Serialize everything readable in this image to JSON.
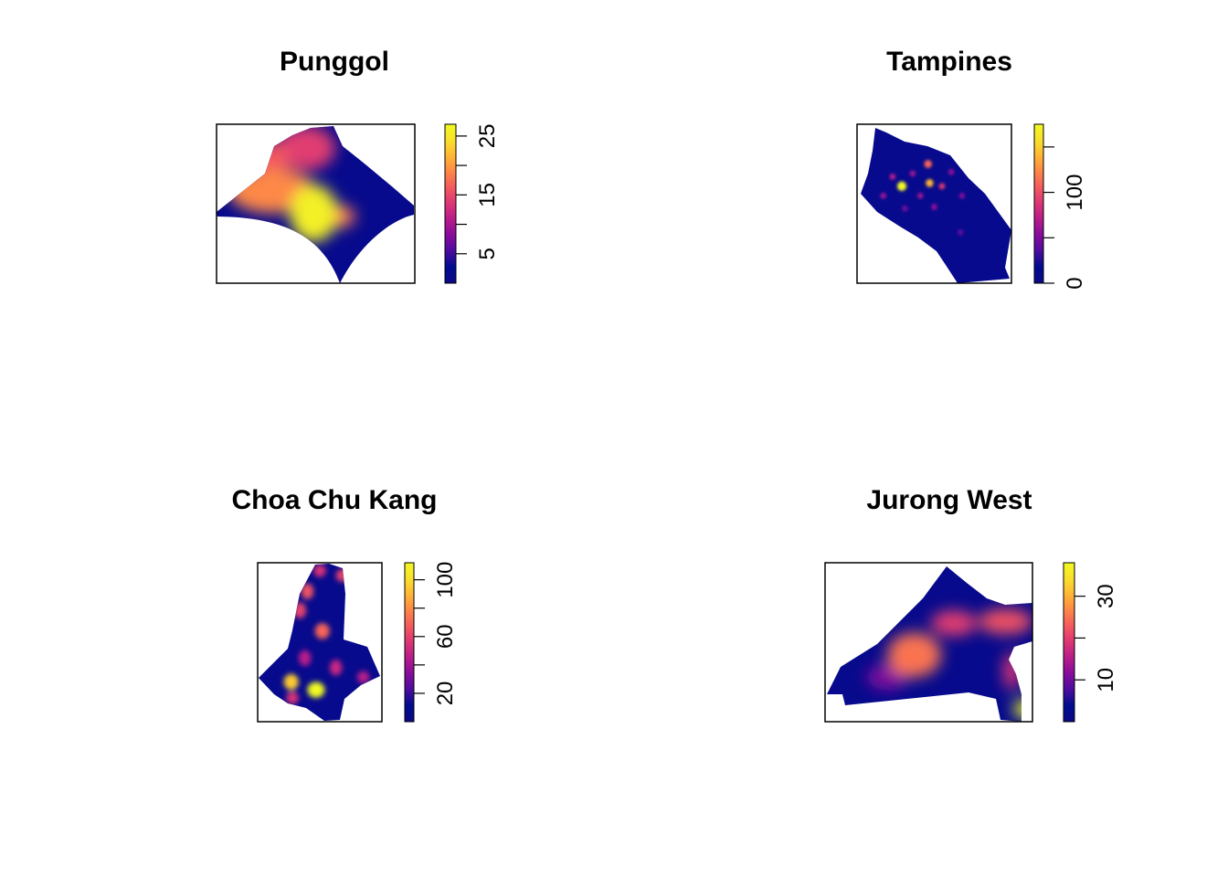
{
  "colors": {
    "palette": [
      "#0D0887",
      "#000B90",
      "#4A0C9F",
      "#860B9C",
      "#B71B8B",
      "#DC3575",
      "#F3595E",
      "#FD8647",
      "#FFB535",
      "#F9E02B",
      "#F0F921"
    ],
    "frame": "#000000",
    "background": "#FFFFFF"
  },
  "chart_data": [
    {
      "type": "heatmap",
      "title": "Punggol",
      "zlim": [
        0,
        27
      ],
      "ticks": [
        5,
        10,
        15,
        20,
        25
      ],
      "tick_labels": [
        "5",
        "",
        "15",
        "",
        "25"
      ],
      "hotspots": [
        {
          "x": 0.49,
          "y": 0.56,
          "rx": 0.12,
          "ry": 0.18,
          "value": 26
        },
        {
          "x": 0.28,
          "y": 0.42,
          "rx": 0.22,
          "ry": 0.14,
          "value": 19
        },
        {
          "x": 0.62,
          "y": 0.58,
          "rx": 0.08,
          "ry": 0.07,
          "value": 18
        },
        {
          "x": 0.28,
          "y": 0.22,
          "rx": 0.09,
          "ry": 0.11,
          "value": 16
        },
        {
          "x": 0.45,
          "y": 0.15,
          "rx": 0.15,
          "ry": 0.14,
          "value": 14
        }
      ]
    },
    {
      "type": "heatmap",
      "title": "Tampines",
      "zlim": [
        0,
        175
      ],
      "ticks": [
        0,
        50,
        100,
        150
      ],
      "tick_labels": [
        "0",
        "",
        "100",
        ""
      ],
      "hotspots": [
        {
          "x": 0.29,
          "y": 0.39,
          "rx": 0.03,
          "ry": 0.03,
          "value": 175
        },
        {
          "x": 0.47,
          "y": 0.37,
          "rx": 0.025,
          "ry": 0.025,
          "value": 140
        },
        {
          "x": 0.46,
          "y": 0.25,
          "rx": 0.025,
          "ry": 0.025,
          "value": 110
        },
        {
          "x": 0.55,
          "y": 0.39,
          "rx": 0.02,
          "ry": 0.02,
          "value": 90
        },
        {
          "x": 0.23,
          "y": 0.33,
          "rx": 0.02,
          "ry": 0.02,
          "value": 70
        },
        {
          "x": 0.36,
          "y": 0.31,
          "rx": 0.02,
          "ry": 0.02,
          "value": 60
        },
        {
          "x": 0.17,
          "y": 0.45,
          "rx": 0.02,
          "ry": 0.02,
          "value": 60
        },
        {
          "x": 0.41,
          "y": 0.45,
          "rx": 0.02,
          "ry": 0.02,
          "value": 60
        },
        {
          "x": 0.5,
          "y": 0.52,
          "rx": 0.02,
          "ry": 0.02,
          "value": 55
        },
        {
          "x": 0.61,
          "y": 0.3,
          "rx": 0.02,
          "ry": 0.02,
          "value": 55
        },
        {
          "x": 0.68,
          "y": 0.45,
          "rx": 0.02,
          "ry": 0.02,
          "value": 50
        },
        {
          "x": 0.31,
          "y": 0.53,
          "rx": 0.02,
          "ry": 0.02,
          "value": 45
        },
        {
          "x": 0.67,
          "y": 0.68,
          "rx": 0.02,
          "ry": 0.02,
          "value": 40
        }
      ]
    },
    {
      "type": "heatmap",
      "title": "Choa Chu Kang",
      "zlim": [
        0,
        112
      ],
      "ticks": [
        20,
        40,
        60,
        80,
        100
      ],
      "tick_labels": [
        "20",
        "",
        "60",
        "",
        "100"
      ],
      "hotspots": [
        {
          "x": 0.47,
          "y": 0.8,
          "rx": 0.07,
          "ry": 0.05,
          "value": 112
        },
        {
          "x": 0.27,
          "y": 0.75,
          "rx": 0.06,
          "ry": 0.05,
          "value": 95
        },
        {
          "x": 0.52,
          "y": 0.43,
          "rx": 0.06,
          "ry": 0.05,
          "value": 70
        },
        {
          "x": 0.4,
          "y": 0.18,
          "rx": 0.05,
          "ry": 0.05,
          "value": 65
        },
        {
          "x": 0.34,
          "y": 0.3,
          "rx": 0.05,
          "ry": 0.05,
          "value": 60
        },
        {
          "x": 0.68,
          "y": 0.08,
          "rx": 0.05,
          "ry": 0.04,
          "value": 60
        },
        {
          "x": 0.5,
          "y": 0.05,
          "rx": 0.05,
          "ry": 0.04,
          "value": 55
        },
        {
          "x": 0.38,
          "y": 0.6,
          "rx": 0.05,
          "ry": 0.05,
          "value": 45
        },
        {
          "x": 0.63,
          "y": 0.66,
          "rx": 0.05,
          "ry": 0.05,
          "value": 50
        },
        {
          "x": 0.28,
          "y": 0.85,
          "rx": 0.05,
          "ry": 0.04,
          "value": 55
        },
        {
          "x": 0.85,
          "y": 0.72,
          "rx": 0.05,
          "ry": 0.04,
          "value": 45
        }
      ]
    },
    {
      "type": "heatmap",
      "title": "Jurong West",
      "zlim": [
        0,
        38
      ],
      "ticks": [
        10,
        20,
        30
      ],
      "tick_labels": [
        "10",
        "",
        "30"
      ],
      "hotspots": [
        {
          "x": 0.97,
          "y": 0.92,
          "rx": 0.06,
          "ry": 0.06,
          "value": 38
        },
        {
          "x": 0.43,
          "y": 0.58,
          "rx": 0.13,
          "ry": 0.14,
          "value": 25
        },
        {
          "x": 0.87,
          "y": 0.37,
          "rx": 0.13,
          "ry": 0.08,
          "value": 22
        },
        {
          "x": 0.62,
          "y": 0.38,
          "rx": 0.11,
          "ry": 0.08,
          "value": 20
        },
        {
          "x": 0.9,
          "y": 0.68,
          "rx": 0.04,
          "ry": 0.12,
          "value": 19
        },
        {
          "x": 0.3,
          "y": 0.72,
          "rx": 0.1,
          "ry": 0.08,
          "value": 11
        }
      ]
    }
  ]
}
